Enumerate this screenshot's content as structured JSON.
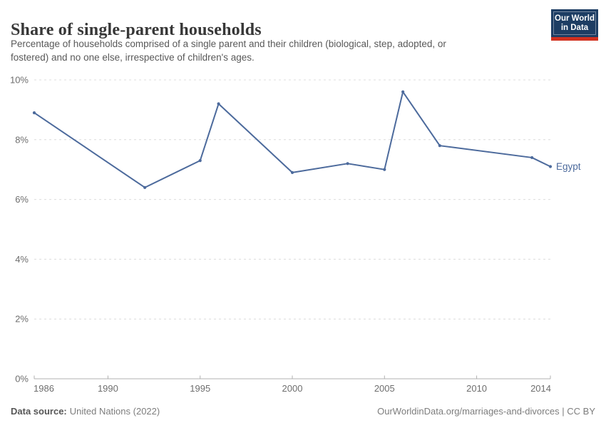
{
  "header": {
    "title": "Share of single-parent households",
    "subtitle_lines": [
      "Percentage of households comprised of a single parent and their children (biological, step, adopted, or",
      "fostered) and no one else, irrespective of children's ages."
    ],
    "logo": {
      "line1": "Our World",
      "line2": "in Data"
    }
  },
  "chart_data": {
    "type": "line",
    "title": "Share of single-parent households",
    "xlabel": "",
    "ylabel": "",
    "xlim": [
      1986,
      2014
    ],
    "ylim": [
      0,
      10
    ],
    "x_ticks": [
      1986,
      1990,
      1995,
      2000,
      2005,
      2010,
      2014
    ],
    "y_ticks": [
      0,
      2,
      4,
      6,
      8,
      10
    ],
    "y_tick_suffix": "%",
    "grid": "horizontal-dashed",
    "legend_position": "end-of-line",
    "end_label": "Egypt",
    "series": [
      {
        "name": "Egypt",
        "color": "#4c6a9c",
        "x": [
          1986,
          1992,
          1995,
          1996,
          2000,
          2003,
          2005,
          2006,
          2008,
          2013,
          2014
        ],
        "y": [
          8.9,
          6.4,
          7.3,
          9.2,
          6.9,
          7.2,
          7.0,
          9.6,
          7.8,
          7.4,
          7.1
        ]
      }
    ]
  },
  "footer": {
    "source_label": "Data source:",
    "source_value": "United Nations (2022)",
    "link": "OurWorldinData.org/marriages-and-divorces | CC BY"
  },
  "colors": {
    "series": "#4c6a9c",
    "grid": "#dcdcdc",
    "axis": "#b0b0b0",
    "tick_label": "#6e6e6e",
    "logo_bg": "#1d3d63",
    "logo_accent": "#d1301f"
  }
}
